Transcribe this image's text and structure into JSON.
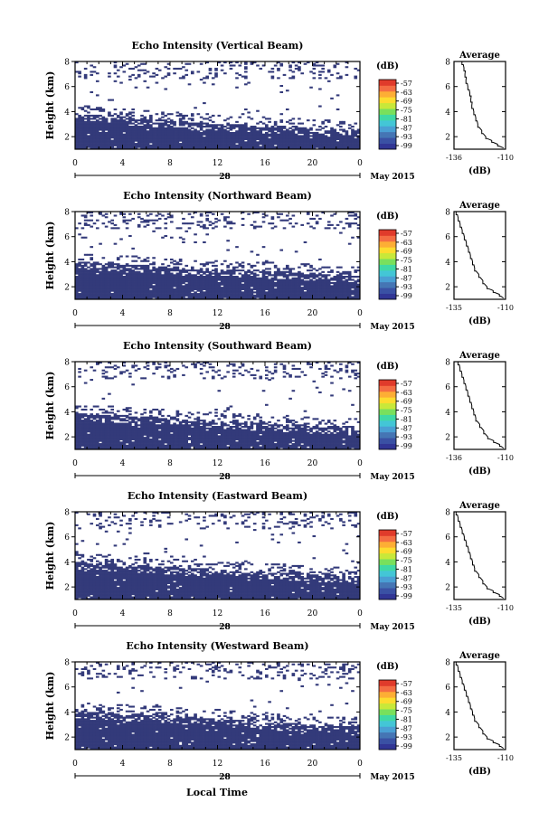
{
  "figure": {
    "x_axis_label": "Local Time",
    "x_ticks": [
      "0",
      "4",
      "8",
      "12",
      "16",
      "20",
      "0"
    ],
    "day_label": "28",
    "month_label": "May 2015",
    "y_axis_label": "Height (km)",
    "y_ticks": [
      "2",
      "4",
      "6",
      "8"
    ],
    "colorbar_unit": "(dB)",
    "colorbar_ticks": [
      "-57",
      "-63",
      "-69",
      "-75",
      "-81",
      "-87",
      "-93",
      "-99"
    ],
    "colorbar_colors": [
      "#313695",
      "#3a51a4",
      "#4575b4",
      "#4a9fd4",
      "#43c6d6",
      "#3fd9a5",
      "#79e05c",
      "#c8e83a",
      "#fddc2f",
      "#fdae35",
      "#f46d43",
      "#e03b2b"
    ],
    "fill_color": "#333a7a",
    "avg_title": "Average",
    "avg_xlabel": "(dB)"
  },
  "chart_data": [
    {
      "type": "heatmap",
      "title": "Echo Intensity (Vertical Beam)",
      "xlabel": "Local Time",
      "ylabel": "Height (km)",
      "xlim": [
        0,
        24
      ],
      "ylim": [
        1,
        8
      ],
      "x_ticks": [
        0,
        4,
        8,
        12,
        16,
        20,
        24
      ],
      "echo_top_km": [
        [
          0,
          3.8
        ],
        [
          4,
          3.6
        ],
        [
          8,
          3.3
        ],
        [
          12,
          3.0
        ],
        [
          16,
          2.9
        ],
        [
          20,
          2.7
        ],
        [
          24,
          2.5
        ]
      ],
      "colorbar": {
        "unit": "(dB)",
        "ticks": [
          -57,
          -63,
          -69,
          -75,
          -81,
          -87,
          -93,
          -99
        ]
      },
      "average": {
        "title": "Average",
        "xlabel": "(dB)",
        "xlim": [
          -136,
          -110
        ],
        "x_ticks": [
          "-136",
          "-110"
        ],
        "x": [
          -132,
          -131,
          -130.5,
          -130,
          -129,
          -128,
          -127.5,
          -127,
          -126,
          -125,
          -124,
          -122,
          -120,
          -117,
          -114,
          -111
        ],
        "y": [
          8,
          7.5,
          7,
          6.5,
          6,
          5.5,
          5,
          4.5,
          4,
          3.5,
          3,
          2.5,
          2,
          1.7,
          1.4,
          1.1
        ]
      }
    },
    {
      "type": "heatmap",
      "title": "Echo Intensity (Northward Beam)",
      "xlabel": "Local Time",
      "ylabel": "Height (km)",
      "xlim": [
        0,
        24
      ],
      "ylim": [
        1,
        8
      ],
      "x_ticks": [
        0,
        4,
        8,
        12,
        16,
        20,
        24
      ],
      "echo_top_km": [
        [
          0,
          4.0
        ],
        [
          4,
          3.8
        ],
        [
          8,
          3.6
        ],
        [
          12,
          3.4
        ],
        [
          16,
          3.3
        ],
        [
          20,
          3.1
        ],
        [
          24,
          2.9
        ]
      ],
      "colorbar": {
        "unit": "(dB)",
        "ticks": [
          -57,
          -63,
          -69,
          -75,
          -81,
          -87,
          -93,
          -99
        ]
      },
      "average": {
        "title": "Average",
        "xlabel": "(dB)",
        "xlim": [
          -135,
          -110
        ],
        "x_ticks": [
          "-135",
          "-110"
        ],
        "x": [
          -134,
          -133,
          -132,
          -131,
          -130,
          -129,
          -128,
          -127,
          -126,
          -125,
          -123,
          -121,
          -119,
          -116,
          -113,
          -111
        ],
        "y": [
          8,
          7.5,
          7,
          6.5,
          6,
          5.5,
          5,
          4.5,
          4,
          3.5,
          3,
          2.5,
          2,
          1.7,
          1.4,
          1.1
        ]
      }
    },
    {
      "type": "heatmap",
      "title": "Echo Intensity (Southward Beam)",
      "xlabel": "Local Time",
      "ylabel": "Height (km)",
      "xlim": [
        0,
        24
      ],
      "ylim": [
        1,
        8
      ],
      "x_ticks": [
        0,
        4,
        8,
        12,
        16,
        20,
        24
      ],
      "echo_top_km": [
        [
          0,
          3.9
        ],
        [
          4,
          3.7
        ],
        [
          8,
          3.5
        ],
        [
          12,
          3.3
        ],
        [
          16,
          3.1
        ],
        [
          20,
          2.9
        ],
        [
          24,
          2.8
        ]
      ],
      "colorbar": {
        "unit": "(dB)",
        "ticks": [
          -57,
          -63,
          -69,
          -75,
          -81,
          -87,
          -93,
          -99
        ]
      },
      "average": {
        "title": "Average",
        "xlabel": "(dB)",
        "xlim": [
          -136,
          -110
        ],
        "x_ticks": [
          "-136",
          "-110"
        ],
        "x": [
          -134,
          -133,
          -132,
          -131,
          -130,
          -129,
          -128,
          -127,
          -126,
          -125,
          -123,
          -121,
          -119,
          -116,
          -113,
          -111
        ],
        "y": [
          8,
          7.5,
          7,
          6.5,
          6,
          5.5,
          5,
          4.5,
          4,
          3.5,
          3,
          2.5,
          2,
          1.7,
          1.4,
          1.1
        ]
      }
    },
    {
      "type": "heatmap",
      "title": "Echo Intensity (Eastward Beam)",
      "xlabel": "Local Time",
      "ylabel": "Height (km)",
      "xlim": [
        0,
        24
      ],
      "ylim": [
        1,
        8
      ],
      "x_ticks": [
        0,
        4,
        8,
        12,
        16,
        20,
        24
      ],
      "echo_top_km": [
        [
          0,
          4.0
        ],
        [
          4,
          3.8
        ],
        [
          8,
          3.6
        ],
        [
          12,
          3.4
        ],
        [
          16,
          3.2
        ],
        [
          20,
          3.0
        ],
        [
          24,
          2.9
        ]
      ],
      "colorbar": {
        "unit": "(dB)",
        "ticks": [
          -57,
          -63,
          -69,
          -75,
          -81,
          -87,
          -93,
          -99
        ]
      },
      "average": {
        "title": "Average",
        "xlabel": "(dB)",
        "xlim": [
          -135,
          -110
        ],
        "x_ticks": [
          "-135",
          "-110"
        ],
        "x": [
          -134,
          -133,
          -132,
          -131,
          -130,
          -129,
          -128,
          -127,
          -126,
          -125,
          -123,
          -121,
          -119,
          -116,
          -113,
          -111
        ],
        "y": [
          8,
          7.5,
          7,
          6.5,
          6,
          5.5,
          5,
          4.5,
          4,
          3.5,
          3,
          2.5,
          2,
          1.7,
          1.4,
          1.1
        ]
      }
    },
    {
      "type": "heatmap",
      "title": "Echo Intensity (Westward Beam)",
      "xlabel": "Local Time",
      "ylabel": "Height (km)",
      "xlim": [
        0,
        24
      ],
      "ylim": [
        1,
        8
      ],
      "x_ticks": [
        0,
        4,
        8,
        12,
        16,
        20,
        24
      ],
      "echo_top_km": [
        [
          0,
          4.1
        ],
        [
          4,
          3.9
        ],
        [
          8,
          3.7
        ],
        [
          12,
          3.5
        ],
        [
          16,
          3.2
        ],
        [
          20,
          3.0
        ],
        [
          24,
          2.9
        ]
      ],
      "colorbar": {
        "unit": "(dB)",
        "ticks": [
          -57,
          -63,
          -69,
          -75,
          -81,
          -87,
          -93,
          -99
        ]
      },
      "average": {
        "title": "Average",
        "xlabel": "(dB)",
        "xlim": [
          -135,
          -110
        ],
        "x_ticks": [
          "-135",
          "-110"
        ],
        "x": [
          -134,
          -133,
          -132,
          -131,
          -130,
          -129,
          -128,
          -127,
          -126,
          -125,
          -123,
          -121,
          -119,
          -116,
          -113,
          -111
        ],
        "y": [
          8,
          7.5,
          7,
          6.5,
          6,
          5.5,
          5,
          4.5,
          4,
          3.5,
          3,
          2.5,
          2,
          1.7,
          1.4,
          1.1
        ]
      }
    }
  ]
}
